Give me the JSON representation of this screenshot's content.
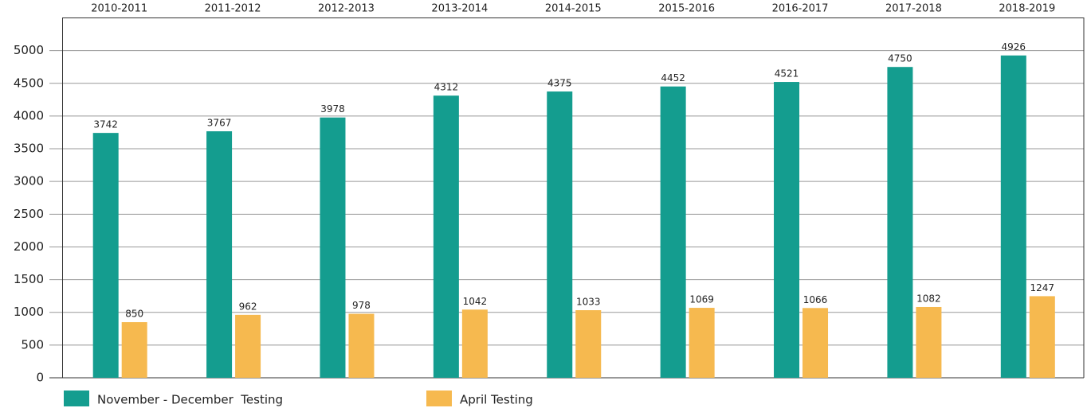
{
  "chart_data": {
    "type": "bar",
    "categories": [
      "2010-2011",
      "2011-2012",
      "2012-2013",
      "2013-2014",
      "2014-2015",
      "2015-2016",
      "2016-2017",
      "2017-2018",
      "2018-2019"
    ],
    "series": [
      {
        "name": "November - December  Testing",
        "color": "#149d8f",
        "values": [
          3742,
          3767,
          3978,
          4312,
          4375,
          4452,
          4521,
          4750,
          4926
        ]
      },
      {
        "name": "April Testing",
        "color": "#f6b94f",
        "values": [
          850,
          962,
          978,
          1042,
          1033,
          1069,
          1066,
          1082,
          1247
        ]
      }
    ],
    "ylim": [
      0,
      5500
    ],
    "yticks": [
      0,
      500,
      1000,
      1500,
      2000,
      2500,
      3000,
      3500,
      4000,
      4500,
      5000
    ],
    "grid": true,
    "legend": "bottom"
  }
}
